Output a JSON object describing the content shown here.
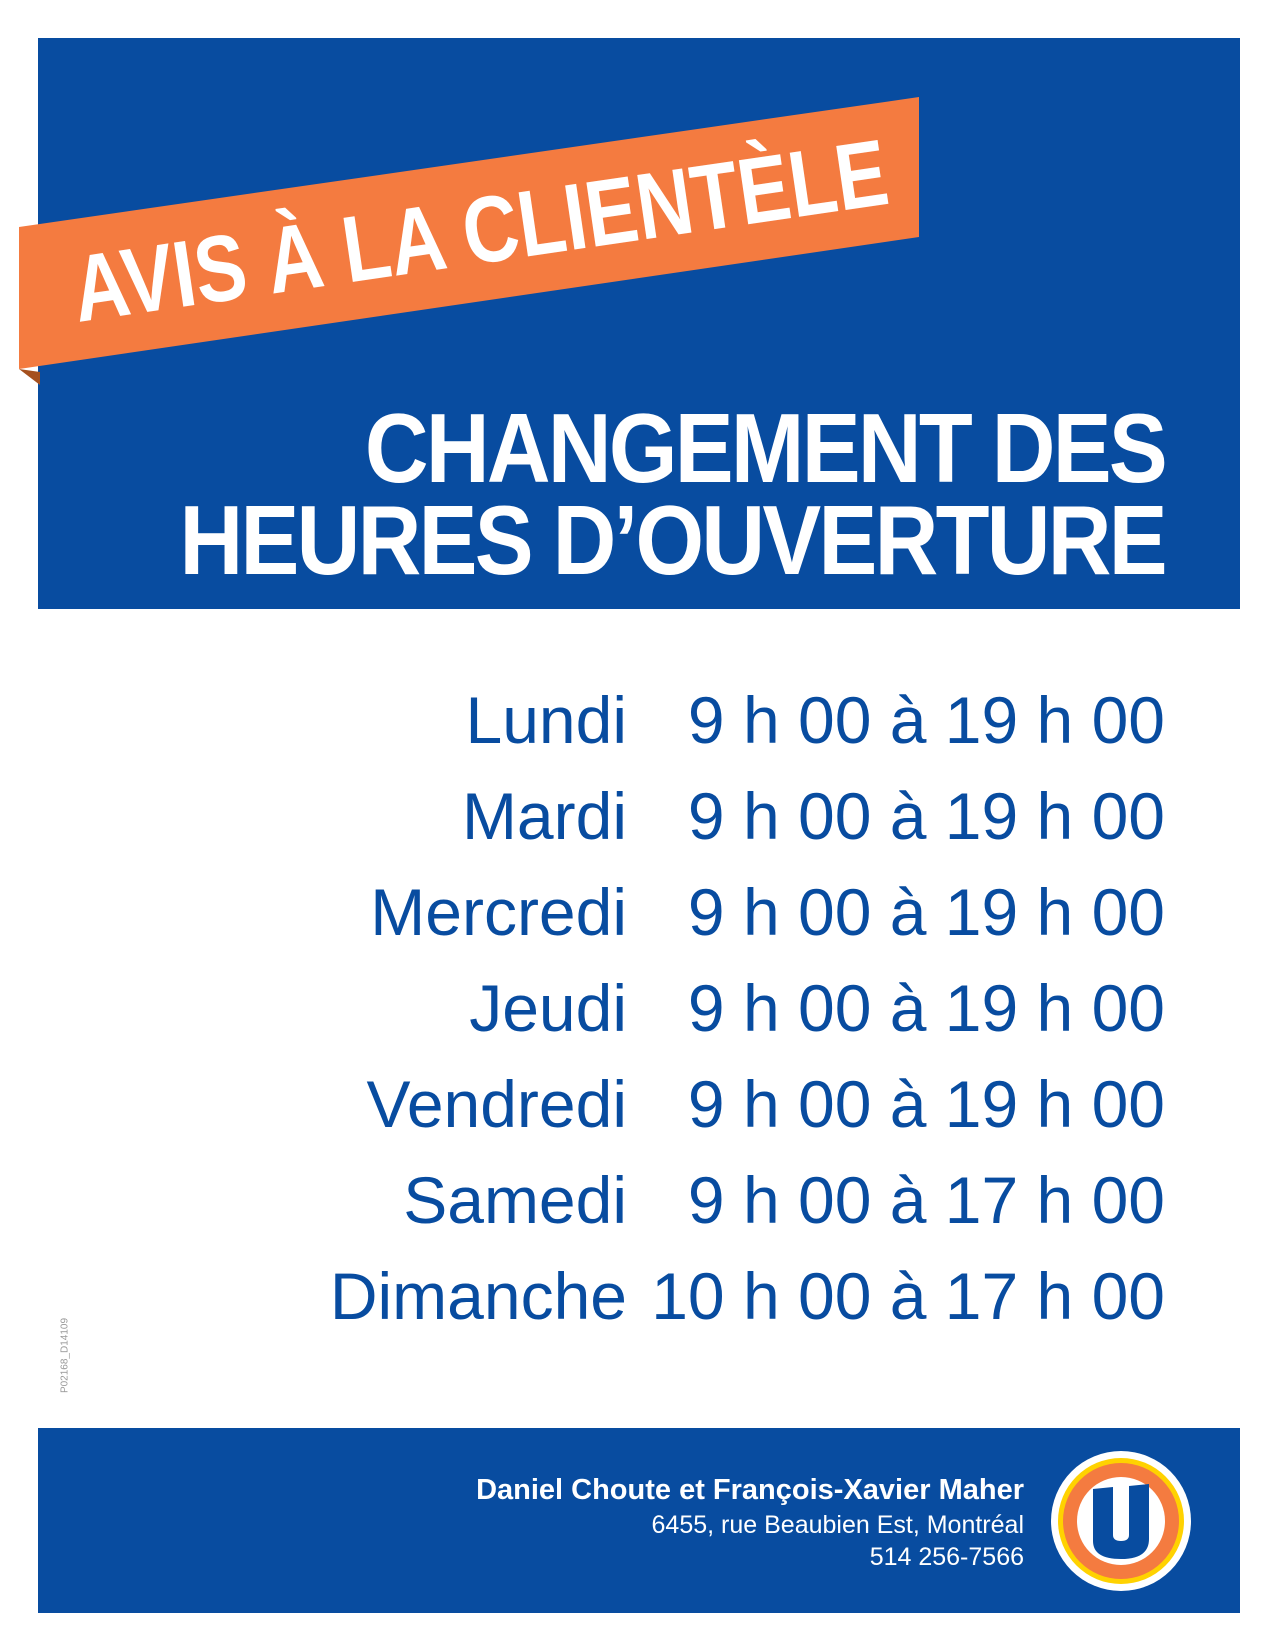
{
  "banner": {
    "text": "AVIS À LA CLIENTÈLE"
  },
  "title": {
    "line1": "CHANGEMENT DES",
    "line2": "HEURES D’OUVERTURE"
  },
  "schedule": [
    {
      "day": "Lundi",
      "hours": "9 h 00 à 19 h 00"
    },
    {
      "day": "Mardi",
      "hours": "9 h 00 à 19 h 00"
    },
    {
      "day": "Mercredi",
      "hours": "9 h 00 à 19 h 00"
    },
    {
      "day": "Jeudi",
      "hours": "9 h 00 à 19 h 00"
    },
    {
      "day": "Vendredi",
      "hours": "9 h 00 à 19 h 00"
    },
    {
      "day": "Samedi",
      "hours": "9 h 00 à 17 h 00"
    },
    {
      "day": "Dimanche",
      "hours": "10 h 00 à 17 h 00"
    }
  ],
  "footer": {
    "owners": "Daniel Choute et François-Xavier Maher",
    "address": "6455, rue Beaubien Est, Montréal",
    "phone": "514 256-7566"
  },
  "code": "P02168_D14109",
  "logo": {
    "letter": "U"
  },
  "colors": {
    "blue": "#084ca0",
    "orange": "#f47b40",
    "yellow": "#ffd200"
  }
}
